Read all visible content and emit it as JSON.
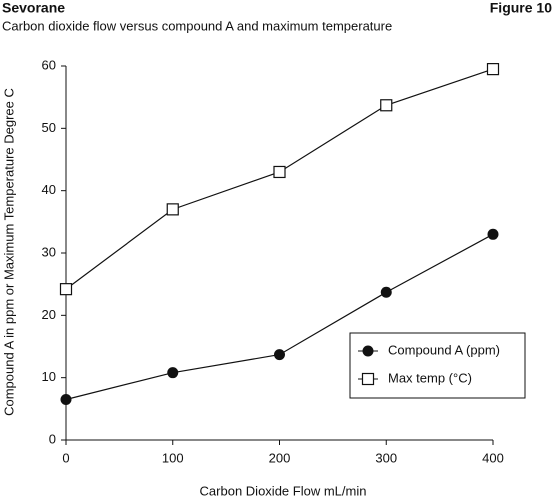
{
  "header": {
    "title": "Sevorane",
    "figure": "Figure 10"
  },
  "chart_data": {
    "type": "line",
    "title": "Carbon dioxide flow versus compound A and maximum temperature",
    "x_label": "Carbon Dioxide Flow mL/min",
    "y_label": "Compound A in ppm or Maximum Temperature Degree C",
    "x": [
      0,
      100,
      200,
      300,
      400
    ],
    "series": [
      {
        "name": "Compound A (ppm)",
        "color": "#111111",
        "marker": "filled-circle",
        "values": [
          6.5,
          10.8,
          13.7,
          23.7,
          33
        ]
      },
      {
        "name": "Max temp (°C)",
        "color": "#111111",
        "marker": "open-square",
        "values": [
          24.2,
          37,
          43,
          53.7,
          59.5
        ]
      }
    ],
    "xlim": [
      0,
      400
    ],
    "xticks": [
      0,
      100,
      200,
      300,
      400
    ],
    "ylim": [
      0,
      60
    ],
    "yticks": [
      0,
      10,
      20,
      30,
      40,
      50,
      60
    ],
    "grid": false,
    "legend": "lower right"
  }
}
